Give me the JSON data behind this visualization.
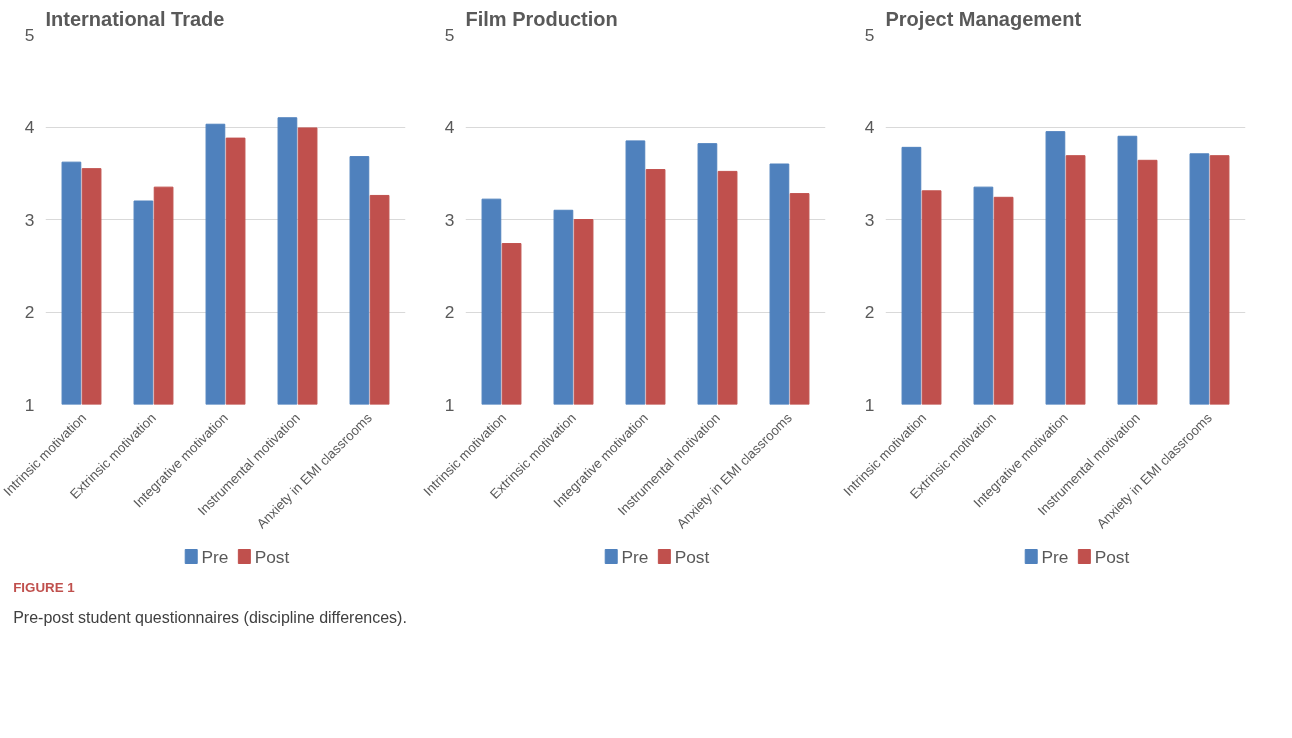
{
  "chart_data": [
    {
      "type": "bar",
      "title": "International Trade",
      "categories": [
        "Intrinsic motivation",
        "Extrinsic motivation",
        "Integrative motivation",
        "Instrumental motivation",
        "Anxiety in EMI classrooms"
      ],
      "series": [
        {
          "name": "Pre",
          "color": "#4f81bd",
          "values": [
            3.62,
            3.2,
            4.03,
            4.1,
            3.68
          ]
        },
        {
          "name": "Post",
          "color": "#c0504d",
          "values": [
            3.55,
            3.35,
            3.88,
            3.99,
            3.26
          ]
        }
      ],
      "ylim": [
        1,
        5
      ],
      "yticks": [
        1,
        2,
        3,
        4,
        5
      ],
      "grid": "y",
      "legend": "bottom"
    },
    {
      "type": "bar",
      "title": "Film Production",
      "categories": [
        "Intrinsic motivation",
        "Extrinsic motivation",
        "Integrative motivation",
        "Instrumental motivation",
        "Anxiety in EMI classrooms"
      ],
      "series": [
        {
          "name": "Pre",
          "color": "#4f81bd",
          "values": [
            3.22,
            3.1,
            3.85,
            3.82,
            3.6
          ]
        },
        {
          "name": "Post",
          "color": "#c0504d",
          "values": [
            2.74,
            3.0,
            3.54,
            3.52,
            3.28
          ]
        }
      ],
      "ylim": [
        1,
        5
      ],
      "yticks": [
        1,
        2,
        3,
        4,
        5
      ],
      "grid": "y",
      "legend": "bottom"
    },
    {
      "type": "bar",
      "title": "Project Management",
      "categories": [
        "Intrinsic motivation",
        "Extrinsic motivation",
        "Integrative motivation",
        "Instrumental motivation",
        "Anxiety in EMI classrooms"
      ],
      "series": [
        {
          "name": "Pre",
          "color": "#4f81bd",
          "values": [
            3.78,
            3.35,
            3.95,
            3.9,
            3.71
          ]
        },
        {
          "name": "Post",
          "color": "#c0504d",
          "values": [
            3.31,
            3.24,
            3.69,
            3.64,
            3.69
          ]
        }
      ],
      "ylim": [
        1,
        5
      ],
      "yticks": [
        1,
        2,
        3,
        4,
        5
      ],
      "grid": "y",
      "legend": "bottom",
      "annotations": [
        "FIGURE 1",
        "Pre-post student questionnaires (discipline differences)."
      ]
    }
  ]
}
